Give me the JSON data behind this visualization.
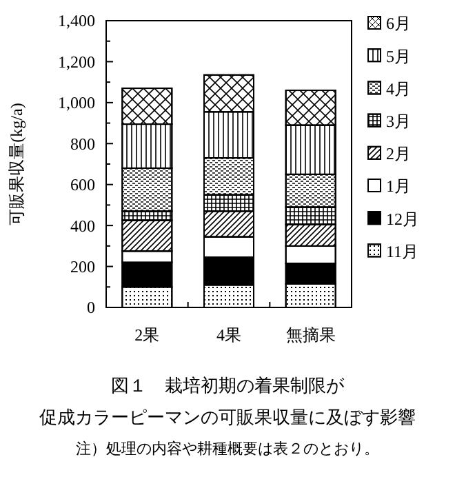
{
  "chart_data": {
    "type": "bar",
    "stacked": true,
    "title": "図１　栽培初期の着果制限が",
    "subtitle": "促成カラーピーマンの可販果収量に及ぼす影響",
    "annotations": [
      "注）処理の内容や耕種概要は表２のとおり。"
    ],
    "ylabel": "可販果収量(kg/a)",
    "categories": [
      "2果",
      "4果",
      "無摘果"
    ],
    "series": [
      {
        "name": "11月",
        "color": "#ffffff",
        "values": [
          100,
          110,
          115
        ]
      },
      {
        "name": "12月",
        "color": "#000000",
        "values": [
          120,
          135,
          100
        ]
      },
      {
        "name": "1月",
        "color": "#ffffff",
        "values": [
          55,
          100,
          85
        ]
      },
      {
        "name": "2月",
        "color": "#ffffff",
        "values": [
          150,
          125,
          105
        ]
      },
      {
        "name": "3月",
        "color": "#ffffff",
        "values": [
          45,
          80,
          85
        ]
      },
      {
        "name": "4月",
        "color": "#ffffff",
        "values": [
          210,
          180,
          160
        ]
      },
      {
        "name": "5月",
        "color": "#ffffff",
        "values": [
          215,
          225,
          240
        ]
      },
      {
        "name": "6月",
        "color": "#ffffff",
        "values": [
          175,
          180,
          170
        ]
      }
    ],
    "ylim": [
      0,
      1400
    ],
    "yticks": [
      0,
      {
        "value": 100,
        "label": null
      },
      200,
      {
        "value": 300,
        "label": null
      },
      400,
      {
        "value": 500,
        "label": null
      },
      600,
      {
        "value": 700,
        "label": null
      },
      800,
      {
        "value": 900,
        "label": null
      },
      {
        "value": 1000,
        "label": "1,000"
      },
      {
        "value": 1100,
        "label": null
      },
      {
        "value": 1200,
        "label": "1,200"
      },
      {
        "value": 1300,
        "label": null
      },
      {
        "value": 1400,
        "label": "1,400"
      }
    ],
    "grid": false,
    "legend": "right"
  }
}
